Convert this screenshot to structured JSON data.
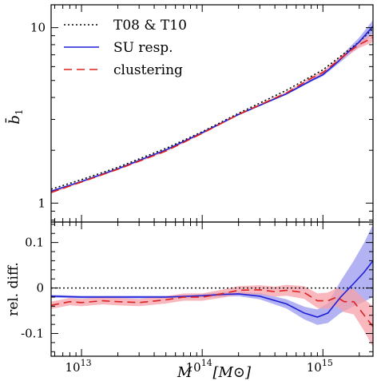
{
  "chart_data": [
    {
      "type": "line",
      "panel": "top",
      "ylabel": "b̄",
      "ylabel_sub": "1",
      "x_scale": "log",
      "y_scale": "log",
      "xlim": [
        5600000000000.0,
        2600000000000000.0
      ],
      "ylim": [
        0.78,
        13.5
      ],
      "yticks": [
        {
          "value": 1,
          "label": "1"
        },
        {
          "value": 10,
          "label": "10"
        }
      ],
      "grid": false,
      "legend_position": "top-left",
      "series": [
        {
          "name": "T08 & T10",
          "color": "#000000",
          "style": "dotted",
          "x": [
            5600000000000.0,
            10000000000000.0,
            20000000000000.0,
            50000000000000.0,
            100000000000000.0,
            200000000000000.0,
            500000000000000.0,
            1000000000000000.0,
            2000000000000000.0,
            2600000000000000.0
          ],
          "y": [
            1.2,
            1.36,
            1.6,
            2.05,
            2.55,
            3.25,
            4.4,
            5.75,
            8.3,
            9.9
          ]
        },
        {
          "name": "SU resp.",
          "color": "#1f1fd6",
          "style": "solid",
          "band_color": "#9a9af0",
          "x": [
            5600000000000.0,
            10000000000000.0,
            20000000000000.0,
            50000000000000.0,
            100000000000000.0,
            200000000000000.0,
            500000000000000.0,
            800000000000000.0,
            1000000000000000.0,
            1300000000000000.0,
            1600000000000000.0,
            2000000000000000.0,
            2600000000000000.0
          ],
          "y": [
            1.17,
            1.33,
            1.57,
            2.01,
            2.52,
            3.2,
            4.2,
            5.0,
            5.4,
            6.3,
            7.2,
            8.3,
            10.2
          ],
          "band_halfwidth_frac": [
            0.004,
            0.004,
            0.004,
            0.005,
            0.006,
            0.008,
            0.012,
            0.016,
            0.02,
            0.03,
            0.045,
            0.06,
            0.085
          ]
        },
        {
          "name": "clustering",
          "color": "#dd2222",
          "style": "dashed",
          "band_color": "#f5a0a8",
          "x": [
            5600000000000.0,
            10000000000000.0,
            20000000000000.0,
            50000000000000.0,
            100000000000000.0,
            200000000000000.0,
            500000000000000.0,
            800000000000000.0,
            1000000000000000.0,
            1300000000000000.0,
            1600000000000000.0,
            2000000000000000.0,
            2600000000000000.0
          ],
          "y": [
            1.15,
            1.32,
            1.56,
            1.98,
            2.5,
            3.2,
            4.25,
            5.15,
            5.55,
            6.4,
            7.2,
            8.0,
            8.8
          ],
          "band_halfwidth_frac": [
            0.012,
            0.011,
            0.011,
            0.011,
            0.011,
            0.012,
            0.014,
            0.017,
            0.02,
            0.025,
            0.032,
            0.042,
            0.06
          ]
        }
      ]
    },
    {
      "type": "line",
      "panel": "bottom",
      "xlabel": "M",
      "xlabel_unit": "[M⊙]",
      "ylabel": "rel. diff.",
      "x_scale": "log",
      "xlim": [
        5600000000000.0,
        2600000000000000.0
      ],
      "ylim": [
        -0.15,
        0.145
      ],
      "xticks": [
        {
          "value": 10000000000000.0,
          "base": "10",
          "exp": "13"
        },
        {
          "value": 100000000000000.0,
          "base": "10",
          "exp": "14"
        },
        {
          "value": 1000000000000000.0,
          "base": "10",
          "exp": "15"
        }
      ],
      "yticks": [
        {
          "value": 0.1,
          "label": "0.1"
        },
        {
          "value": 0,
          "label": "0"
        },
        {
          "value": -0.1,
          "label": "-0.1"
        }
      ],
      "reference_line": {
        "y": 0,
        "style": "dotted",
        "color": "#000000"
      },
      "series": [
        {
          "name": "SU resp.",
          "color": "#1f1fd6",
          "style": "solid",
          "band_color": "#9a9af0",
          "x": [
            5600000000000.0,
            10000000000000.0,
            20000000000000.0,
            50000000000000.0,
            100000000000000.0,
            150000000000000.0,
            200000000000000.0,
            300000000000000.0,
            500000000000000.0,
            700000000000000.0,
            900000000000000.0,
            1100000000000000.0,
            1400000000000000.0,
            1800000000000000.0,
            2200000000000000.0,
            2600000000000000.0
          ],
          "y": [
            -0.018,
            -0.02,
            -0.02,
            -0.02,
            -0.017,
            -0.014,
            -0.013,
            -0.018,
            -0.035,
            -0.055,
            -0.064,
            -0.055,
            -0.02,
            0.01,
            0.035,
            0.06
          ],
          "band": [
            0.003,
            0.003,
            0.003,
            0.003,
            0.004,
            0.005,
            0.005,
            0.007,
            0.01,
            0.014,
            0.017,
            0.022,
            0.035,
            0.05,
            0.065,
            0.08
          ]
        },
        {
          "name": "clustering",
          "color": "#dd2222",
          "style": "dashed",
          "band_color": "#f5a0a8",
          "x": [
            5600000000000.0,
            8000000000000.0,
            10000000000000.0,
            15000000000000.0,
            20000000000000.0,
            30000000000000.0,
            50000000000000.0,
            70000000000000.0,
            100000000000000.0,
            150000000000000.0,
            200000000000000.0,
            300000000000000.0,
            400000000000000.0,
            500000000000000.0,
            700000000000000.0,
            900000000000000.0,
            1100000000000000.0,
            1300000000000000.0,
            1500000000000000.0,
            1800000000000000.0,
            2200000000000000.0,
            2600000000000000.0
          ],
          "y": [
            -0.038,
            -0.03,
            -0.032,
            -0.028,
            -0.03,
            -0.032,
            -0.026,
            -0.02,
            -0.02,
            -0.012,
            -0.005,
            -0.004,
            -0.008,
            -0.005,
            -0.01,
            -0.028,
            -0.028,
            -0.02,
            -0.03,
            -0.03,
            -0.06,
            -0.085
          ],
          "band": [
            0.008,
            0.008,
            0.008,
            0.008,
            0.008,
            0.008,
            0.008,
            0.008,
            0.008,
            0.009,
            0.009,
            0.01,
            0.011,
            0.012,
            0.014,
            0.016,
            0.018,
            0.02,
            0.023,
            0.028,
            0.035,
            0.045
          ]
        }
      ]
    }
  ]
}
